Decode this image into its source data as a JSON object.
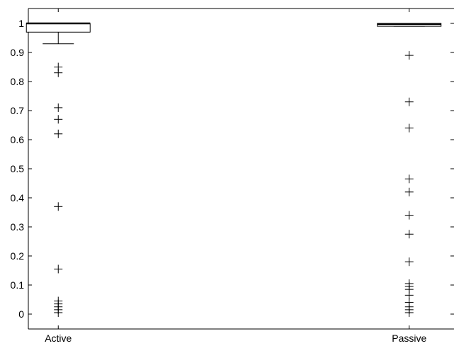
{
  "chart_data": {
    "type": "boxplot",
    "title": "",
    "xlabel": "",
    "ylabel": "",
    "ylim": [
      -0.05,
      1.05
    ],
    "y_ticks": [
      0,
      0.1,
      0.2,
      0.3,
      0.4,
      0.5,
      0.6,
      0.7,
      0.8,
      0.9,
      1
    ],
    "y_tick_labels": [
      "0",
      "0.1",
      "0.2",
      "0.3",
      "0.4",
      "0.5",
      "0.6",
      "0.7",
      "0.8",
      "0.9",
      "1"
    ],
    "categories": [
      "Active",
      "Passive"
    ],
    "series": [
      {
        "category": "Active",
        "q1": 0.97,
        "median": 1.0,
        "q3": 1.0,
        "whisker_low": 0.93,
        "whisker_high": 1.0,
        "outliers": [
          0.85,
          0.83,
          0.71,
          0.67,
          0.62,
          0.37,
          0.155,
          0.045,
          0.035,
          0.025,
          0.015,
          0.005
        ]
      },
      {
        "category": "Passive",
        "q1": 0.99,
        "median": 0.998,
        "q3": 1.0,
        "whisker_low": 0.99,
        "whisker_high": 1.0,
        "outliers": [
          0.89,
          0.73,
          0.64,
          0.465,
          0.42,
          0.34,
          0.275,
          0.18,
          0.105,
          0.095,
          0.085,
          0.065,
          0.04,
          0.025,
          0.015,
          0.005
        ]
      }
    ],
    "grid": false,
    "legend": "none"
  }
}
